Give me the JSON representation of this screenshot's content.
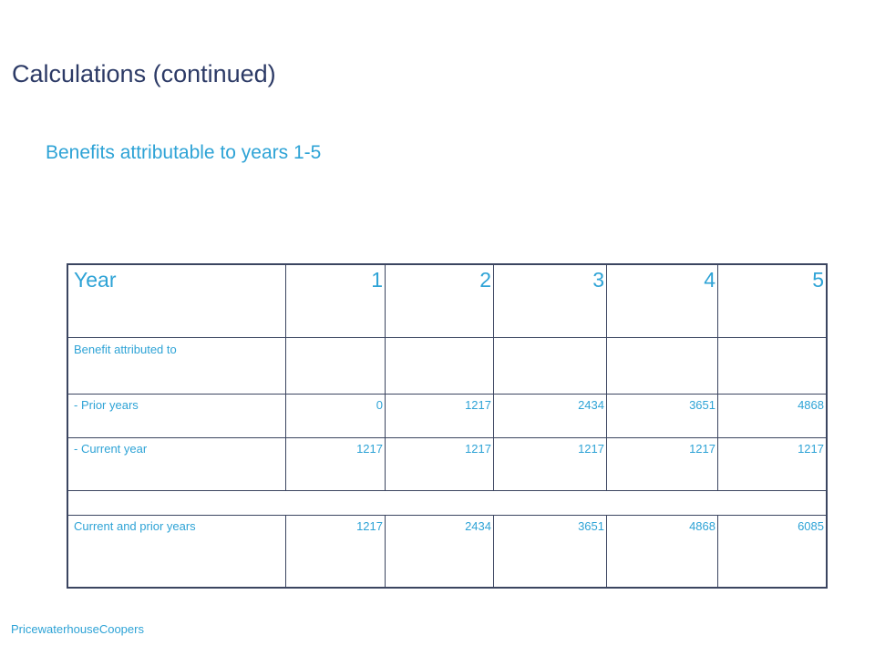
{
  "slide": {
    "title": "Calculations (continued)",
    "subtitle": "Benefits attributable to years 1-5",
    "footer": "PricewaterhouseCoopers"
  },
  "table": {
    "header": [
      "Year",
      "1",
      "2",
      "3",
      "4",
      "5"
    ],
    "rows": [
      [
        "Benefit attributed to",
        "",
        "",
        "",
        "",
        ""
      ],
      [
        "- Prior years",
        "0",
        "1217",
        "2434",
        "3651",
        "4868"
      ],
      [
        "- Current year",
        "1217",
        "1217",
        "1217",
        "1217",
        "1217"
      ],
      [
        "",
        "",
        "",
        "",
        "",
        ""
      ],
      [
        "Current and prior years",
        "1217",
        "2434",
        "3651",
        "4868",
        "6085"
      ]
    ]
  }
}
